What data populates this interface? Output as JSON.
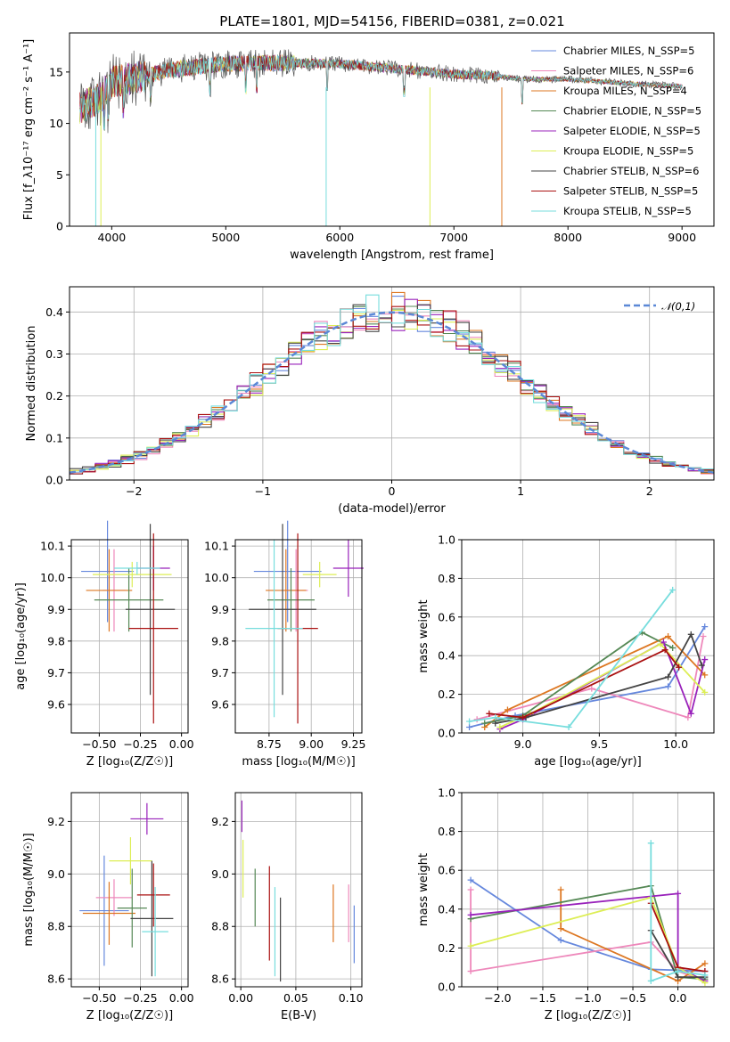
{
  "figure": {
    "title": "PLATE=1801, MJD=54156, FIBERID=0381, z=0.021"
  },
  "colors": [
    "#6688dd",
    "#ee88bb",
    "#dd7722",
    "#558855",
    "#9922bb",
    "#ddee55",
    "#444444",
    "#aa1111",
    "#77dddd"
  ],
  "chart_data": [
    {
      "id": "spectrum",
      "type": "line",
      "xlabel": "wavelength [Angstrom, rest frame]",
      "ylabel": "Flux [f_λ10⁻¹⁷ erg cm⁻² s⁻¹ A⁻¹]",
      "xlim": [
        3630,
        9280
      ],
      "ylim": [
        0,
        18.8
      ],
      "xticks": [
        4000,
        5000,
        6000,
        7000,
        8000,
        9000
      ],
      "yticks": [
        0,
        5,
        10,
        15
      ],
      "grid": false,
      "legend_position": "top-right",
      "series": [
        {
          "name": "Chabrier MILES, N_SSP=5"
        },
        {
          "name": "Salpeter MILES, N_SSP=6"
        },
        {
          "name": "Kroupa MILES, N_SSP=4"
        },
        {
          "name": "Chabrier ELODIE, N_SSP=5"
        },
        {
          "name": "Salpeter ELODIE, N_SSP=5"
        },
        {
          "name": "Kroupa ELODIE, N_SSP=5"
        },
        {
          "name": "Chabrier STELIB, N_SSP=6"
        },
        {
          "name": "Salpeter STELIB, N_SSP=5"
        },
        {
          "name": "Kroupa STELIB, N_SSP=5"
        }
      ],
      "continuum": {
        "wavelength": [
          3720,
          3900,
          4000,
          4300,
          4500,
          5000,
          5500,
          6000,
          6500,
          7000,
          7400,
          7600,
          8000,
          8500,
          9000
        ],
        "flux": [
          11.5,
          12.5,
          14.0,
          14.6,
          15.2,
          15.8,
          15.9,
          15.8,
          15.3,
          14.8,
          14.6,
          14.3,
          14.3,
          13.9,
          13.6
        ]
      }
    },
    {
      "id": "residuals",
      "type": "line",
      "xlabel": "(data-model)/error",
      "ylabel": "Normed distribution",
      "xlim": [
        -2.5,
        2.5
      ],
      "ylim": [
        0,
        0.46
      ],
      "xticks": [
        -2,
        -1,
        0,
        1,
        2
      ],
      "yticks": [
        0.0,
        0.1,
        0.2,
        0.3,
        0.4
      ],
      "grid": true,
      "legend_position": "top-right",
      "reference": {
        "name": "𝒩(0,1)",
        "mean": 0,
        "std": 1
      },
      "hist_bin_width": 0.1
    },
    {
      "id": "age-vs-z",
      "type": "scatter",
      "xlabel": "Z [log₁₀(Z/Z☉)]",
      "ylabel": "age  [log₁₀(age/yr)]",
      "xlim": [
        -0.67,
        0.04
      ],
      "ylim": [
        9.51,
        10.12
      ],
      "xticks": [
        -0.5,
        -0.25,
        0.0
      ],
      "yticks": [
        9.6,
        9.7,
        9.8,
        9.9,
        10.0,
        10.1
      ],
      "grid": true,
      "points": [
        {
          "x": -0.45,
          "y": 10.02,
          "xerr": 0.16,
          "yerr": 0.16,
          "color": 0
        },
        {
          "x": -0.41,
          "y": 9.96,
          "xerr": 0.07,
          "yerr": 0.13,
          "color": 1
        },
        {
          "x": -0.44,
          "y": 9.96,
          "xerr": 0.14,
          "yerr": 0.13,
          "color": 2
        },
        {
          "x": -0.32,
          "y": 9.93,
          "xerr": 0.21,
          "yerr": 0.1,
          "color": 3
        },
        {
          "x": -0.17,
          "y": 10.03,
          "xerr": 0.1,
          "yerr": 0.07,
          "color": 4
        },
        {
          "x": -0.3,
          "y": 10.01,
          "xerr": 0.24,
          "yerr": 0.04,
          "color": 5
        },
        {
          "x": -0.19,
          "y": 9.9,
          "xerr": 0.15,
          "yerr": 0.27,
          "color": 6
        },
        {
          "x": -0.17,
          "y": 9.84,
          "xerr": 0.15,
          "yerr": 0.3,
          "color": 7
        },
        {
          "x": -0.27,
          "y": 10.03,
          "xerr": 0.14,
          "yerr": 0.02,
          "color": 8
        }
      ]
    },
    {
      "id": "age-vs-mass",
      "type": "scatter",
      "xlabel": "mass [log₁₀(M/M☉)]",
      "ylabel": "",
      "xlim": [
        8.55,
        9.3
      ],
      "ylim": [
        9.51,
        10.12
      ],
      "xticks": [
        8.75,
        9.0,
        9.25
      ],
      "yticks": [
        9.6,
        9.7,
        9.8,
        9.9,
        10.0,
        10.1
      ],
      "grid": true,
      "points": [
        {
          "x": 8.86,
          "y": 10.02,
          "xerr": 0.2,
          "yerr": 0.16,
          "color": 0
        },
        {
          "x": 8.91,
          "y": 9.96,
          "xerr": 0.07,
          "yerr": 0.13,
          "color": 1
        },
        {
          "x": 8.85,
          "y": 9.96,
          "xerr": 0.12,
          "yerr": 0.13,
          "color": 2
        },
        {
          "x": 8.88,
          "y": 9.93,
          "xerr": 0.14,
          "yerr": 0.1,
          "color": 3
        },
        {
          "x": 9.22,
          "y": 10.03,
          "xerr": 0.09,
          "yerr": 0.09,
          "color": 4
        },
        {
          "x": 9.05,
          "y": 10.01,
          "xerr": 0.1,
          "yerr": 0.04,
          "color": 5
        },
        {
          "x": 8.83,
          "y": 9.9,
          "xerr": 0.2,
          "yerr": 0.27,
          "color": 6
        },
        {
          "x": 8.92,
          "y": 9.84,
          "xerr": 0.12,
          "yerr": 0.3,
          "color": 7
        },
        {
          "x": 8.78,
          "y": 9.84,
          "xerr": 0.17,
          "yerr": 0.28,
          "color": 8
        }
      ]
    },
    {
      "id": "weight-vs-age",
      "type": "line",
      "xlabel": "age  [log₁₀(age/yr)]",
      "ylabel": "mass weight",
      "xlim": [
        8.6,
        10.25
      ],
      "ylim": [
        0,
        1.0
      ],
      "xticks": [
        9.0,
        9.5,
        10.0
      ],
      "yticks": [
        0.0,
        0.2,
        0.4,
        0.6,
        0.8,
        1.0
      ],
      "grid": true,
      "series": [
        {
          "color": 0,
          "x": [
            8.65,
            8.95,
            9.95,
            10.19
          ],
          "y": [
            0.03,
            0.09,
            0.24,
            0.55
          ]
        },
        {
          "color": 1,
          "x": [
            8.7,
            9.45,
            10.08,
            10.18
          ],
          "y": [
            0.07,
            0.23,
            0.08,
            0.5
          ]
        },
        {
          "color": 2,
          "x": [
            8.75,
            8.9,
            9.95,
            10.19
          ],
          "y": [
            0.03,
            0.12,
            0.5,
            0.3
          ]
        },
        {
          "color": 3,
          "x": [
            8.75,
            9.0,
            9.78,
            9.98
          ],
          "y": [
            0.05,
            0.09,
            0.52,
            0.44
          ]
        },
        {
          "color": 4,
          "x": [
            8.85,
            9.0,
            9.92,
            10.1,
            10.19
          ],
          "y": [
            0.02,
            0.07,
            0.47,
            0.1,
            0.38
          ]
        },
        {
          "color": 5,
          "x": [
            8.85,
            9.05,
            9.9,
            10.19
          ],
          "y": [
            0.03,
            0.1,
            0.46,
            0.21
          ]
        },
        {
          "color": 6,
          "x": [
            8.82,
            9.02,
            9.95,
            10.1,
            10.17
          ],
          "y": [
            0.05,
            0.08,
            0.29,
            0.51,
            0.35
          ]
        },
        {
          "color": 7,
          "x": [
            8.78,
            9.0,
            9.93,
            10.02
          ],
          "y": [
            0.1,
            0.08,
            0.43,
            0.34
          ]
        },
        {
          "color": 8,
          "x": [
            8.65,
            8.82,
            9.3,
            9.98
          ],
          "y": [
            0.06,
            0.08,
            0.03,
            0.74
          ]
        }
      ]
    },
    {
      "id": "mass-vs-z",
      "type": "scatter",
      "xlabel": "Z [log₁₀(Z/Z☉)]",
      "ylabel": "mass [log₁₀(M/M☉)]",
      "xlim": [
        -0.67,
        0.04
      ],
      "ylim": [
        8.57,
        9.31
      ],
      "xticks": [
        -0.5,
        -0.25,
        0.0
      ],
      "yticks": [
        8.6,
        8.8,
        9.0,
        9.2
      ],
      "grid": true,
      "points": [
        {
          "x": -0.47,
          "y": 8.86,
          "xerr": 0.15,
          "yerr": 0.21,
          "color": 0
        },
        {
          "x": -0.41,
          "y": 8.91,
          "xerr": 0.11,
          "yerr": 0.07,
          "color": 1
        },
        {
          "x": -0.44,
          "y": 8.85,
          "xerr": 0.16,
          "yerr": 0.12,
          "color": 2
        },
        {
          "x": -0.3,
          "y": 8.87,
          "xerr": 0.09,
          "yerr": 0.15,
          "color": 3
        },
        {
          "x": -0.21,
          "y": 9.21,
          "xerr": 0.1,
          "yerr": 0.06,
          "color": 4
        },
        {
          "x": -0.31,
          "y": 9.05,
          "xerr": 0.13,
          "yerr": 0.09,
          "color": 5
        },
        {
          "x": -0.18,
          "y": 8.83,
          "xerr": 0.13,
          "yerr": 0.22,
          "color": 6
        },
        {
          "x": -0.17,
          "y": 8.92,
          "xerr": 0.1,
          "yerr": 0.12,
          "color": 7
        },
        {
          "x": -0.16,
          "y": 8.78,
          "xerr": 0.08,
          "yerr": 0.17,
          "color": 8
        }
      ]
    },
    {
      "id": "mass-vs-ebv",
      "type": "scatter",
      "xlabel": "E(B-V)",
      "ylabel": "",
      "xlim": [
        -0.005,
        0.11
      ],
      "ylim": [
        8.57,
        9.31
      ],
      "xticks": [
        0.0,
        0.05,
        0.1
      ],
      "yticks": [
        8.6,
        8.8,
        9.0,
        9.2
      ],
      "grid": true,
      "points": [
        {
          "x": 0.103,
          "y": 8.77,
          "yerr": 0.11,
          "color": 0
        },
        {
          "x": 0.098,
          "y": 8.85,
          "yerr": 0.11,
          "color": 1
        },
        {
          "x": 0.084,
          "y": 8.85,
          "yerr": 0.11,
          "color": 2
        },
        {
          "x": 0.013,
          "y": 8.91,
          "yerr": 0.11,
          "color": 3
        },
        {
          "x": 0.001,
          "y": 9.22,
          "yerr": 0.06,
          "color": 4
        },
        {
          "x": 0.002,
          "y": 9.02,
          "yerr": 0.11,
          "color": 5
        },
        {
          "x": 0.036,
          "y": 8.75,
          "yerr": 0.16,
          "color": 6
        },
        {
          "x": 0.026,
          "y": 8.85,
          "yerr": 0.18,
          "color": 7
        },
        {
          "x": 0.031,
          "y": 8.78,
          "yerr": 0.17,
          "color": 8
        }
      ]
    },
    {
      "id": "weight-vs-z",
      "type": "line",
      "xlabel": "Z [log₁₀(Z/Z☉)]",
      "ylabel": "mass weight",
      "xlim": [
        -2.4,
        0.4
      ],
      "ylim": [
        0,
        1.0
      ],
      "xticks": [
        -2.0,
        -1.5,
        -1.0,
        -0.5,
        0.0
      ],
      "yticks": [
        0.0,
        0.2,
        0.4,
        0.6,
        0.8,
        1.0
      ],
      "grid": true,
      "series": [
        {
          "color": 0,
          "x": [
            -2.3,
            -1.3,
            -0.3,
            0.3
          ],
          "y": [
            0.55,
            0.24,
            0.09,
            0.08
          ]
        },
        {
          "color": 1,
          "x": [
            -2.3,
            -2.3,
            -0.3,
            0.0,
            0.3
          ],
          "y": [
            0.5,
            0.08,
            0.23,
            0.08,
            0.03
          ]
        },
        {
          "color": 2,
          "x": [
            -1.3,
            -1.3,
            0.0,
            0.3
          ],
          "y": [
            0.5,
            0.3,
            0.03,
            0.12
          ]
        },
        {
          "color": 3,
          "x": [
            -2.3,
            -0.3,
            0.0,
            0.3
          ],
          "y": [
            0.35,
            0.52,
            0.05,
            0.04
          ]
        },
        {
          "color": 4,
          "x": [
            -2.3,
            0.0,
            0.0,
            0.3
          ],
          "y": [
            0.37,
            0.48,
            0.1,
            0.03
          ]
        },
        {
          "color": 5,
          "x": [
            -2.3,
            -0.3,
            0.0,
            0.3
          ],
          "y": [
            0.21,
            0.46,
            0.1,
            0.02
          ]
        },
        {
          "color": 6,
          "x": [
            -0.3,
            0.0,
            0.3
          ],
          "y": [
            0.29,
            0.05,
            0.05
          ]
        },
        {
          "color": 7,
          "x": [
            -0.3,
            0.0,
            0.3
          ],
          "y": [
            0.43,
            0.1,
            0.08
          ]
        },
        {
          "color": 8,
          "x": [
            -0.3,
            -0.3,
            0.0,
            0.3
          ],
          "y": [
            0.74,
            0.03,
            0.08,
            0.06
          ]
        }
      ]
    }
  ]
}
